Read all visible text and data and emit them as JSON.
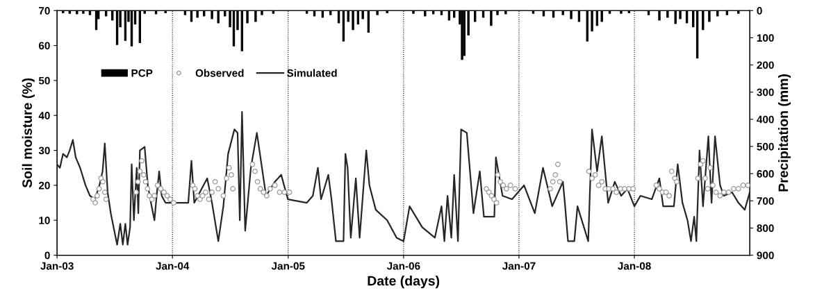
{
  "chart_data": {
    "type": "line",
    "xlabel": "Date (days)",
    "ylabel": "Soil moisture (%)",
    "y2label": "Precipitation (mm)",
    "xlim": [
      "2003-01-01",
      "2008-12-31"
    ],
    "xticks": [
      {
        "value": "2003-01-01",
        "label": "Jan-03"
      },
      {
        "value": "2004-01-01",
        "label": "Jan-04"
      },
      {
        "value": "2005-01-01",
        "label": "Jan-05"
      },
      {
        "value": "2006-01-01",
        "label": "Jan-06"
      },
      {
        "value": "2007-01-01",
        "label": "Jan-07"
      },
      {
        "value": "2008-01-01",
        "label": "Jan-08"
      }
    ],
    "ylim": [
      0,
      70
    ],
    "yticks": [
      0,
      10,
      20,
      30,
      40,
      50,
      60,
      70
    ],
    "y2lim": [
      900,
      0
    ],
    "y2ticks": [
      0,
      100,
      200,
      300,
      400,
      500,
      600,
      700,
      800,
      900
    ],
    "grid": false,
    "legend": "top left",
    "ref_lines": [
      {
        "axis": "x",
        "value": "2004-01-01",
        "color": "#000000",
        "line_style": "dotted"
      },
      {
        "axis": "x",
        "value": "2005-01-01",
        "color": "#000000",
        "line_style": "dotted"
      },
      {
        "axis": "x",
        "value": "2006-01-01",
        "color": "#000000",
        "line_style": "dotted"
      },
      {
        "axis": "x",
        "value": "2007-01-01",
        "color": "#000000",
        "line_style": "dotted"
      },
      {
        "axis": "x",
        "value": "2008-01-01",
        "color": "#000000",
        "line_style": "dotted"
      }
    ],
    "series": [
      {
        "name": "PCP",
        "type": "bar",
        "axis": "y2",
        "color": "#000000",
        "x": [
          "2003-01-20",
          "2003-02-10",
          "2003-03-05",
          "2003-03-25",
          "2003-04-15",
          "2003-05-05",
          "2003-05-12",
          "2003-06-05",
          "2003-06-25",
          "2003-07-10",
          "2003-07-20",
          "2003-08-05",
          "2003-08-15",
          "2003-08-25",
          "2003-09-05",
          "2003-09-20",
          "2003-10-05",
          "2003-11-10",
          "2003-12-10",
          "2004-02-10",
          "2004-03-01",
          "2004-03-20",
          "2004-04-10",
          "2004-05-05",
          "2004-05-25",
          "2004-06-15",
          "2004-07-01",
          "2004-07-13",
          "2004-07-25",
          "2004-08-08",
          "2004-08-25",
          "2004-09-20",
          "2004-10-10",
          "2004-11-15",
          "2005-03-01",
          "2005-03-25",
          "2005-04-20",
          "2005-05-15",
          "2005-06-10",
          "2005-06-25",
          "2005-07-10",
          "2005-07-25",
          "2005-08-10",
          "2005-08-25",
          "2005-09-12",
          "2005-10-10",
          "2005-11-10",
          "2006-02-01",
          "2006-03-10",
          "2006-04-05",
          "2006-05-01",
          "2006-05-25",
          "2006-06-10",
          "2006-06-28",
          "2006-07-05",
          "2006-07-12",
          "2006-07-25",
          "2006-08-15",
          "2006-09-10",
          "2006-10-05",
          "2006-10-25",
          "2006-11-20",
          "2007-02-15",
          "2007-03-20",
          "2007-04-20",
          "2007-05-20",
          "2007-06-15",
          "2007-07-10",
          "2007-08-05",
          "2007-08-20",
          "2007-09-05",
          "2007-09-20",
          "2007-10-15",
          "2007-11-20",
          "2007-12-15",
          "2008-02-15",
          "2008-03-20",
          "2008-04-15",
          "2008-05-10",
          "2008-05-25",
          "2008-06-15",
          "2008-07-05",
          "2008-07-18",
          "2008-08-05",
          "2008-08-25",
          "2008-09-20",
          "2008-10-20",
          "2008-11-25"
        ],
        "values": [
          8,
          10,
          12,
          10,
          15,
          70,
          30,
          20,
          35,
          125,
          60,
          110,
          40,
          130,
          50,
          118,
          10,
          12,
          8,
          15,
          40,
          25,
          20,
          30,
          45,
          20,
          60,
          130,
          70,
          148,
          45,
          40,
          15,
          10,
          10,
          20,
          25,
          15,
          45,
          112,
          40,
          70,
          50,
          30,
          80,
          15,
          8,
          10,
          20,
          12,
          15,
          35,
          25,
          50,
          180,
          165,
          90,
          40,
          25,
          55,
          15,
          12,
          10,
          20,
          25,
          15,
          30,
          40,
          112,
          75,
          55,
          40,
          10,
          10,
          8,
          15,
          35,
          25,
          48,
          30,
          45,
          60,
          175,
          70,
          40,
          20,
          15,
          10
        ]
      },
      {
        "name": "Observed",
        "type": "scatter",
        "marker": "circle",
        "color": "#999999",
        "x": [
          "2003-04-25",
          "2003-05-02",
          "2003-05-08",
          "2003-05-14",
          "2003-05-20",
          "2003-05-26",
          "2003-06-01",
          "2003-06-05",
          "2003-09-08",
          "2003-09-14",
          "2003-09-20",
          "2003-09-26",
          "2003-10-02",
          "2003-10-08",
          "2003-10-14",
          "2003-10-20",
          "2003-10-28",
          "2003-11-05",
          "2003-11-15",
          "2003-11-25",
          "2003-12-05",
          "2003-12-15",
          "2003-12-25",
          "2004-01-05",
          "2004-03-05",
          "2004-03-12",
          "2004-03-20",
          "2004-03-28",
          "2004-04-05",
          "2004-04-15",
          "2004-04-25",
          "2004-05-05",
          "2004-05-15",
          "2004-05-25",
          "2004-06-10",
          "2004-06-20",
          "2004-06-28",
          "2004-07-05",
          "2004-07-10",
          "2004-09-10",
          "2004-09-18",
          "2004-09-26",
          "2004-10-05",
          "2004-10-15",
          "2004-10-25",
          "2004-11-05",
          "2004-11-20",
          "2004-12-05",
          "2004-12-20",
          "2005-01-05",
          "2006-09-20",
          "2006-09-28",
          "2006-10-06",
          "2006-10-14",
          "2006-10-22",
          "2006-10-26",
          "2006-11-03",
          "2006-11-12",
          "2006-11-22",
          "2006-12-05",
          "2006-12-20",
          "2007-04-10",
          "2007-04-18",
          "2007-04-26",
          "2007-05-04",
          "2007-05-10",
          "2007-08-10",
          "2007-08-20",
          "2007-08-30",
          "2007-09-10",
          "2007-09-20",
          "2007-10-01",
          "2007-10-12",
          "2007-10-25",
          "2007-11-05",
          "2007-11-18",
          "2007-12-01",
          "2007-12-15",
          "2007-12-28",
          "2008-03-10",
          "2008-03-20",
          "2008-03-30",
          "2008-04-10",
          "2008-04-20",
          "2008-04-28",
          "2008-05-08",
          "2008-05-14",
          "2008-07-20",
          "2008-07-28",
          "2008-08-05",
          "2008-08-12",
          "2008-08-20",
          "2008-08-28",
          "2008-09-05",
          "2008-09-15",
          "2008-09-28",
          "2008-10-10",
          "2008-10-25",
          "2008-11-10",
          "2008-11-25",
          "2008-12-10",
          "2008-12-25"
        ],
        "values": [
          16,
          15,
          17,
          19,
          22,
          21,
          18,
          16,
          18,
          21,
          24,
          27,
          23,
          21,
          19,
          17,
          16,
          17,
          20,
          19,
          18,
          17,
          16,
          15,
          20,
          19,
          17,
          16,
          17,
          18,
          16,
          18,
          21,
          19,
          17,
          22,
          25,
          23,
          19,
          26,
          24,
          21,
          19,
          18,
          17,
          19,
          20,
          18,
          18,
          18,
          19,
          18,
          17,
          16,
          15,
          23,
          21,
          20,
          19,
          20,
          19,
          19,
          21,
          23,
          26,
          21,
          24,
          22,
          23,
          20,
          21,
          19,
          19,
          19,
          18,
          19,
          19,
          19,
          19,
          20,
          19,
          18,
          18,
          17,
          24,
          22,
          21,
          22,
          26,
          27,
          22,
          19,
          25,
          20,
          18,
          17,
          18,
          18,
          19,
          19,
          20,
          20
        ]
      },
      {
        "name": "Simulated",
        "marker": "none",
        "line_style": "solid",
        "color": "#262626",
        "x": [
          "2003-01-01",
          "2003-01-10",
          "2003-01-20",
          "2003-02-01",
          "2003-02-10",
          "2003-02-20",
          "2003-03-01",
          "2003-03-15",
          "2003-04-01",
          "2003-04-15",
          "2003-05-01",
          "2003-05-15",
          "2003-05-25",
          "2003-06-01",
          "2003-06-10",
          "2003-06-20",
          "2003-07-01",
          "2003-07-10",
          "2003-07-20",
          "2003-07-28",
          "2003-08-05",
          "2003-08-12",
          "2003-08-20",
          "2003-08-25",
          "2003-09-01",
          "2003-09-10",
          "2003-09-15",
          "2003-09-20",
          "2003-10-05",
          "2003-10-15",
          "2003-10-25",
          "2003-11-05",
          "2003-11-12",
          "2003-11-20",
          "2003-11-28",
          "2003-12-10",
          "2004-01-01",
          "2004-02-20",
          "2004-03-01",
          "2004-03-10",
          "2004-04-20",
          "2004-05-05",
          "2004-05-25",
          "2004-06-10",
          "2004-06-25",
          "2004-07-15",
          "2004-07-25",
          "2004-08-01",
          "2004-08-08",
          "2004-08-18",
          "2004-09-05",
          "2004-09-24",
          "2004-10-23",
          "2004-11-20",
          "2004-12-10",
          "2004-12-31",
          "2005-03-01",
          "2005-03-20",
          "2005-04-05",
          "2005-04-15",
          "2005-05-08",
          "2005-05-18",
          "2005-06-01",
          "2005-06-25",
          "2005-07-01",
          "2005-07-08",
          "2005-07-18",
          "2005-08-03",
          "2005-08-15",
          "2005-09-05",
          "2005-09-15",
          "2005-10-05",
          "2005-11-10",
          "2005-12-10",
          "2006-01-01",
          "2006-01-20",
          "2006-03-01",
          "2006-04-10",
          "2006-05-01",
          "2006-05-10",
          "2006-05-20",
          "2006-06-01",
          "2006-06-10",
          "2006-06-22",
          "2006-07-02",
          "2006-07-20",
          "2006-08-10",
          "2006-08-30",
          "2006-09-12",
          "2006-10-15",
          "2006-10-20",
          "2006-11-10",
          "2006-12-10",
          "2007-01-17",
          "2007-02-20",
          "2007-03-18",
          "2007-04-16",
          "2007-05-20",
          "2007-05-27",
          "2007-06-05",
          "2007-06-25",
          "2007-07-05",
          "2007-08-08",
          "2007-08-20",
          "2007-09-05",
          "2007-09-20",
          "2007-10-10",
          "2007-10-31",
          "2007-11-20",
          "2007-12-10",
          "2008-01-01",
          "2008-01-20",
          "2008-02-25",
          "2008-03-20",
          "2008-04-01",
          "2008-05-05",
          "2008-05-17",
          "2008-06-01",
          "2008-06-17",
          "2008-06-28",
          "2008-07-08",
          "2008-07-15",
          "2008-07-25",
          "2008-08-05",
          "2008-08-22",
          "2008-09-01",
          "2008-09-12",
          "2008-09-28",
          "2008-10-10",
          "2008-11-05",
          "2008-11-25",
          "2008-12-15",
          "2008-12-31"
        ],
        "values": [
          26,
          25,
          29,
          28,
          30,
          33,
          28,
          25,
          20,
          17,
          16,
          20,
          24,
          32,
          18,
          12,
          7,
          3,
          9,
          3,
          9,
          3,
          8,
          26,
          10,
          25,
          12,
          30,
          31,
          20,
          15,
          10,
          17,
          24,
          17,
          15,
          15,
          15,
          27,
          15,
          22,
          15,
          4,
          14,
          29,
          36,
          35,
          10,
          41,
          7,
          25,
          35,
          17,
          21,
          23,
          16,
          15,
          17,
          25,
          16,
          23,
          16,
          4,
          4,
          29,
          25,
          5,
          22,
          5,
          30,
          20,
          13,
          10,
          5,
          4,
          14,
          8,
          5,
          14,
          4,
          17,
          5,
          23,
          4,
          36,
          35,
          12,
          24,
          11,
          11,
          28,
          17,
          16,
          20,
          12,
          25,
          14,
          21,
          14,
          4,
          4,
          14,
          4,
          36,
          24,
          34,
          15,
          21,
          17,
          19,
          14,
          17,
          16,
          22,
          14,
          14,
          26,
          15,
          10,
          4,
          11,
          4,
          30,
          14,
          34,
          15,
          34,
          20,
          17,
          18,
          15,
          13,
          18
        ]
      }
    ]
  }
}
